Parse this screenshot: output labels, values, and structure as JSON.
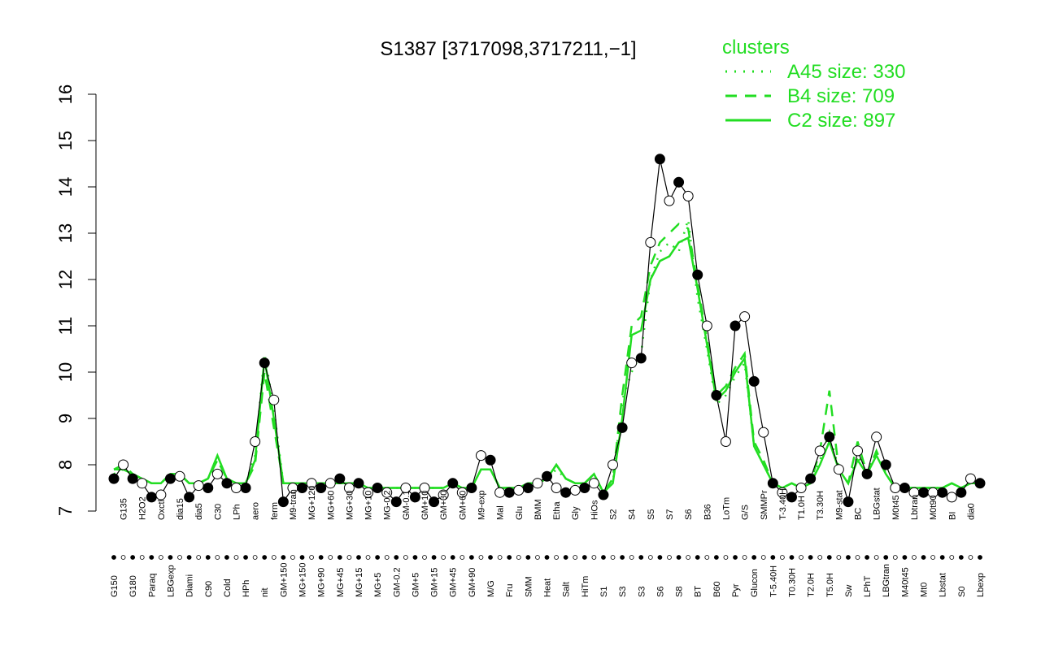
{
  "chart_data": {
    "type": "line",
    "title": "S1387 [3717098,3717211,−1]",
    "legend_title": "clusters",
    "legend_position": "top-right",
    "ylim": [
      7,
      16
    ],
    "yticks": [
      7,
      8,
      9,
      10,
      11,
      12,
      13,
      14,
      15,
      16
    ],
    "color": "#000000",
    "categories": [
      "G150",
      "G135",
      "G180",
      "H2O2",
      "Paraq",
      "Oxctl",
      "LBGexp",
      "dia15",
      "Diami",
      "dia5",
      "C90",
      "C30",
      "Cold",
      "LPh",
      "HPh",
      "aero",
      "nit",
      "ferm",
      "GM+150",
      "M9-tran",
      "MG+150",
      "MG+120",
      "MG+90",
      "MG+60",
      "MG+45",
      "MG+30",
      "MG+15",
      "MG+10",
      "MG+5",
      "MG-0.2",
      "GM-0.2",
      "GM-0.1",
      "GM+5",
      "GM+10",
      "GM+15",
      "GM+30",
      "GM+45",
      "GM+60",
      "GM+90",
      "M9-exp",
      "M/G",
      "Mal",
      "Fru",
      "Glu",
      "SMM",
      "BMM",
      "Heat",
      "Etha",
      "Salt",
      "Gly",
      "HiTm",
      "HiOs",
      "S1",
      "S2",
      "S3",
      "S4",
      "S3",
      "S5",
      "S6",
      "S7",
      "S8",
      "S6",
      "BT",
      "B36",
      "B60",
      "LoTm",
      "Pyr",
      "G/S",
      "Glucon",
      "SMMPr",
      "T-5.40H",
      "T-3.40H",
      "T0.30H",
      "T1.0H",
      "T2.0H",
      "T3.30H",
      "T5.0H",
      "M9-stat",
      "Sw",
      "BC",
      "LPhT",
      "LBGstat",
      "LBGtran",
      "M0t45",
      "M40t45",
      "Lbtran",
      "Mt0",
      "M0t90",
      "Lbstat",
      "BI",
      "S0",
      "dia0",
      "Lbexp"
    ],
    "values": [
      7.7,
      8.0,
      7.7,
      7.6,
      7.3,
      7.35,
      7.7,
      7.75,
      7.3,
      7.55,
      7.5,
      7.8,
      7.6,
      7.5,
      7.5,
      8.5,
      10.2,
      9.4,
      7.2,
      7.5,
      7.5,
      7.6,
      7.5,
      7.6,
      7.7,
      7.5,
      7.6,
      7.4,
      7.5,
      7.4,
      7.2,
      7.5,
      7.3,
      7.5,
      7.2,
      7.35,
      7.6,
      7.4,
      7.5,
      8.2,
      8.1,
      7.4,
      7.4,
      7.45,
      7.5,
      7.6,
      7.75,
      7.5,
      7.4,
      7.45,
      7.5,
      7.6,
      7.35,
      8.0,
      8.8,
      10.2,
      10.3,
      12.8,
      14.6,
      13.7,
      14.1,
      13.8,
      12.1,
      11.0,
      9.5,
      8.5,
      11.0,
      11.2,
      9.8,
      8.7,
      7.6,
      7.4,
      7.3,
      7.5,
      7.7,
      8.3,
      8.6,
      7.9,
      7.2,
      8.3,
      7.8,
      8.6,
      8.0,
      7.5,
      7.5,
      7.4,
      7.4,
      7.4,
      7.4,
      7.3,
      7.4,
      7.7,
      7.6
    ],
    "series": [
      {
        "name": "A45 size: 330",
        "color": "#22dd22",
        "style": "dotted",
        "values": [
          7.8,
          7.9,
          7.8,
          7.7,
          7.6,
          7.6,
          7.8,
          7.8,
          7.6,
          7.6,
          7.7,
          8.1,
          7.7,
          7.6,
          7.6,
          8.2,
          10.4,
          9.2,
          7.6,
          7.6,
          7.6,
          7.6,
          7.6,
          7.6,
          7.6,
          7.6,
          7.6,
          7.5,
          7.5,
          7.5,
          7.5,
          7.5,
          7.5,
          7.5,
          7.5,
          7.5,
          7.6,
          7.5,
          7.5,
          7.9,
          7.9,
          7.5,
          7.5,
          7.5,
          7.6,
          7.6,
          7.7,
          7.9,
          7.7,
          7.6,
          7.6,
          7.8,
          7.4,
          7.6,
          9.4,
          10.0,
          10.4,
          12.0,
          12.6,
          12.8,
          12.6,
          13.3,
          11.6,
          10.5,
          9.3,
          9.5,
          9.9,
          10.2,
          8.4,
          8.0,
          7.6,
          7.5,
          7.6,
          7.5,
          7.6,
          8.1,
          8.7,
          7.9,
          7.6,
          8.2,
          7.8,
          8.3,
          7.8,
          7.5,
          7.5,
          7.5,
          7.5,
          7.5,
          7.5,
          7.6,
          7.5,
          7.6,
          7.6
        ]
      },
      {
        "name": "B4 size: 709",
        "color": "#22dd22",
        "style": "dashed",
        "values": [
          7.9,
          8.0,
          7.8,
          7.7,
          7.6,
          7.6,
          7.8,
          7.8,
          7.6,
          7.6,
          7.7,
          8.1,
          7.7,
          7.6,
          7.6,
          8.0,
          10.0,
          8.8,
          7.6,
          7.6,
          7.6,
          7.6,
          7.6,
          7.6,
          7.6,
          7.6,
          7.6,
          7.5,
          7.5,
          7.5,
          7.5,
          7.5,
          7.5,
          7.5,
          7.5,
          7.5,
          7.6,
          7.5,
          7.5,
          7.9,
          7.9,
          7.5,
          7.5,
          7.5,
          7.6,
          7.6,
          7.7,
          8.0,
          7.7,
          7.6,
          7.6,
          7.8,
          7.4,
          7.7,
          9.5,
          11.0,
          11.2,
          12.3,
          12.8,
          13.0,
          13.2,
          13.1,
          11.9,
          10.7,
          9.5,
          9.7,
          10.1,
          10.4,
          8.5,
          8.1,
          7.6,
          7.5,
          7.6,
          7.5,
          7.6,
          8.3,
          9.6,
          7.9,
          7.6,
          8.5,
          7.8,
          8.3,
          7.8,
          7.5,
          7.5,
          7.5,
          7.5,
          7.5,
          7.5,
          7.6,
          7.5,
          7.6,
          7.6
        ]
      },
      {
        "name": "C2 size: 897",
        "color": "#22dd22",
        "style": "solid",
        "values": [
          7.9,
          7.9,
          7.8,
          7.7,
          7.6,
          7.6,
          7.8,
          7.8,
          7.6,
          7.6,
          7.7,
          8.2,
          7.7,
          7.6,
          7.6,
          8.1,
          10.3,
          9.0,
          7.6,
          7.6,
          7.6,
          7.6,
          7.6,
          7.6,
          7.6,
          7.6,
          7.6,
          7.5,
          7.5,
          7.5,
          7.5,
          7.5,
          7.5,
          7.5,
          7.5,
          7.5,
          7.6,
          7.5,
          7.5,
          7.9,
          7.9,
          7.5,
          7.5,
          7.5,
          7.6,
          7.6,
          7.7,
          8.0,
          7.7,
          7.6,
          7.6,
          7.8,
          7.4,
          7.6,
          9.0,
          10.8,
          10.9,
          12.0,
          12.4,
          12.5,
          12.8,
          12.9,
          11.8,
          10.6,
          9.4,
          9.6,
          10.0,
          10.3,
          8.4,
          8.0,
          7.6,
          7.5,
          7.6,
          7.5,
          7.6,
          8.0,
          8.5,
          7.9,
          7.6,
          8.1,
          7.8,
          8.2,
          7.8,
          7.5,
          7.5,
          7.5,
          7.5,
          7.5,
          7.5,
          7.6,
          7.5,
          7.6,
          7.6
        ]
      }
    ]
  }
}
